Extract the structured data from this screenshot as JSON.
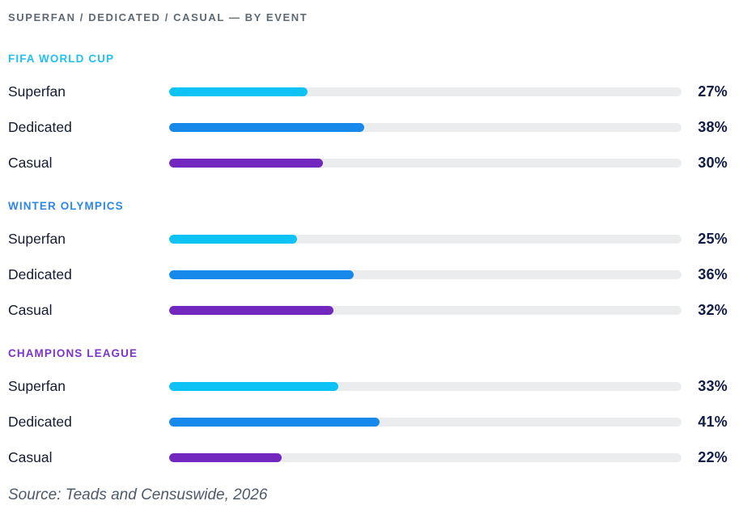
{
  "title": "SUPERFAN / DEDICATED / CASUAL — BY EVENT",
  "source": "Source: Teads and Censuswide, 2026",
  "colors": {
    "title_text": "#5E6973",
    "label_text": "#141B33",
    "value_text": "#101C45",
    "source_text": "#4C5A6B",
    "track": "#EBECEE",
    "series": [
      "#0DC3F5",
      "#1689EA",
      "#7227BE"
    ],
    "group_headers": [
      "#22BFF2",
      "#2E86E8",
      "#7B35C9"
    ]
  },
  "chart_data": {
    "type": "bar",
    "orientation": "horizontal",
    "unit": "%",
    "title": "SUPERFAN / DEDICATED / CASUAL — BY EVENT",
    "categories": [
      "Superfan",
      "Dedicated",
      "Casual"
    ],
    "groups": [
      {
        "name": "FIFA WORLD CUP",
        "values": [
          27,
          38,
          30
        ]
      },
      {
        "name": "WINTER OLYMPICS",
        "values": [
          25,
          36,
          32
        ]
      },
      {
        "name": "CHAMPIONS LEAGUE",
        "values": [
          33,
          41,
          22
        ]
      }
    ],
    "xlim": [
      0,
      100
    ],
    "grid": false,
    "legend": false,
    "value_labels": "right",
    "footnote": "Source: Teads and Censuswide, 2026"
  }
}
